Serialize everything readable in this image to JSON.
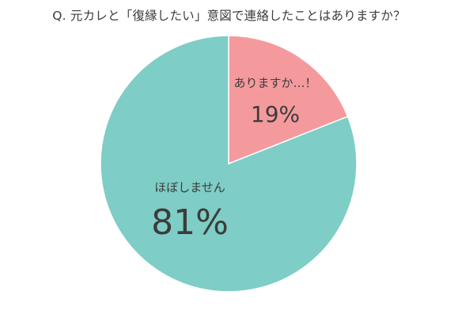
{
  "chart_data": {
    "type": "pie",
    "title": "Q. 元カレと「復縁したい」意図で連絡したことはありますか？",
    "categories": [
      "ありますか…！",
      "ほぼしません"
    ],
    "values": [
      19,
      81
    ],
    "value_labels": [
      "19%",
      "81%"
    ],
    "colors": [
      "#f49a9d",
      "#7ecdc6"
    ],
    "legend": "none"
  }
}
